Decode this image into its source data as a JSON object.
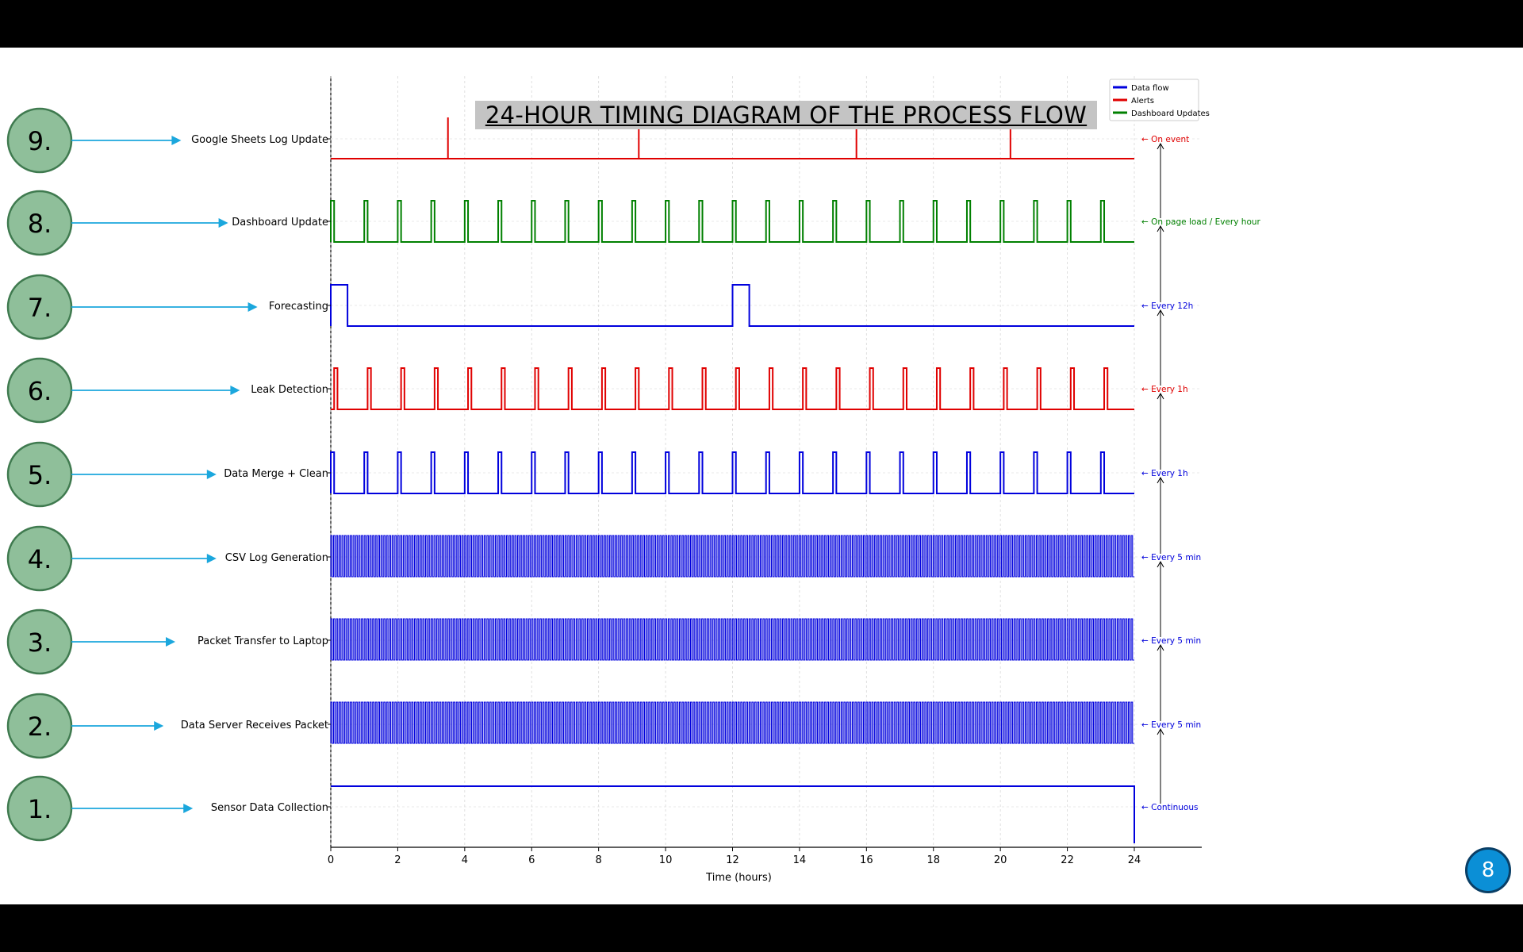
{
  "title": "24-HOUR TIMING DIAGRAM OF THE PROCESS FLOW",
  "slide_number": "8",
  "colors": {
    "data_flow": "#0000dd",
    "alerts": "#e00000",
    "dashboard": "#008000",
    "badge": "#0b8fd6",
    "arrow": "#1ba7dd",
    "circle_fill": "#8fbf9a"
  },
  "chart_data": {
    "type": "line",
    "xlabel": "Time (hours)",
    "xlim": [
      0,
      24
    ],
    "x_ticks": [
      "0",
      "2",
      "4",
      "6",
      "8",
      "10",
      "12",
      "14",
      "16",
      "18",
      "20",
      "22",
      "24"
    ],
    "legend": {
      "placement": "top-right",
      "entries": [
        {
          "label": "Data flow",
          "color": "#0000dd"
        },
        {
          "label": "Alerts",
          "color": "#e00000"
        },
        {
          "label": "Dashboard Updates",
          "color": "#008000"
        }
      ]
    },
    "series": [
      {
        "step": "1.",
        "name": "Sensor Data Collection",
        "category": "Data flow",
        "color": "#0000dd",
        "annotation": "← Continuous",
        "pattern": "continuous",
        "on_until": 24,
        "off_from": 24
      },
      {
        "step": "2.",
        "name": "Data Server Receives Packet",
        "category": "Data flow",
        "color": "#0000dd",
        "annotation": "← Every 5 min",
        "pattern": "periodic",
        "period_hours": 0.0833,
        "pulse_hours": 0.04
      },
      {
        "step": "3.",
        "name": "Packet Transfer to Laptop",
        "category": "Data flow",
        "color": "#0000dd",
        "annotation": "← Every 5 min",
        "pattern": "periodic",
        "period_hours": 0.0833,
        "pulse_hours": 0.04
      },
      {
        "step": "4.",
        "name": "CSV Log Generation",
        "category": "Data flow",
        "color": "#0000dd",
        "annotation": "← Every 5 min",
        "pattern": "periodic",
        "period_hours": 0.0833,
        "pulse_hours": 0.04
      },
      {
        "step": "5.",
        "name": "Data Merge + Clean",
        "category": "Data flow",
        "color": "#0000dd",
        "annotation": "← Every 1h",
        "pattern": "periodic",
        "period_hours": 1,
        "pulse_hours": 0.1,
        "offset_hours": 0
      },
      {
        "step": "6.",
        "name": "Leak Detection",
        "category": "Alerts",
        "color": "#e00000",
        "annotation": "← Every 1h",
        "pattern": "periodic",
        "period_hours": 1,
        "pulse_hours": 0.1,
        "offset_hours": 0.1
      },
      {
        "step": "7.",
        "name": "Forecasting",
        "category": "Data flow",
        "color": "#0000dd",
        "annotation": "← Every 12h",
        "pattern": "periodic",
        "period_hours": 12,
        "pulse_hours": 0.5,
        "offset_hours": 0
      },
      {
        "step": "8.",
        "name": "Dashboard Update",
        "category": "Dashboard Updates",
        "color": "#008000",
        "annotation": "← On page load / Every hour",
        "pattern": "periodic",
        "period_hours": 1,
        "pulse_hours": 0.1,
        "offset_hours": 0
      },
      {
        "step": "9.",
        "name": "Google Sheets Log Update",
        "category": "Alerts",
        "color": "#e00000",
        "annotation": "← On event",
        "pattern": "events",
        "events": [
          3.5,
          9.2,
          15.7,
          20.3
        ]
      }
    ]
  }
}
